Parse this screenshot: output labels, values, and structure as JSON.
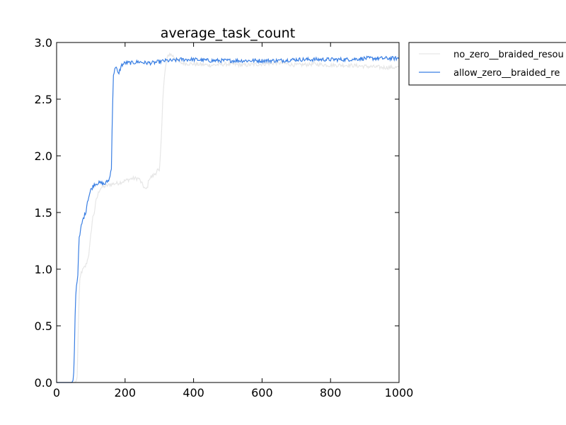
{
  "chart_data": {
    "type": "line",
    "title": "average_task_count",
    "xlabel": "",
    "ylabel": "",
    "xlim": [
      0,
      1000
    ],
    "ylim": [
      0.0,
      3.0
    ],
    "x_ticks": [
      0,
      200,
      400,
      600,
      800,
      1000
    ],
    "x_tick_labels": [
      "0",
      "200",
      "400",
      "600",
      "800",
      "1000"
    ],
    "y_ticks": [
      0.0,
      0.5,
      1.0,
      1.5,
      2.0,
      2.5,
      3.0
    ],
    "y_tick_labels": [
      "0.0",
      "0.5",
      "1.0",
      "1.5",
      "2.0",
      "2.5",
      "3.0"
    ],
    "grid": false,
    "legend_position": "outside-top-right",
    "series": [
      {
        "name": "no_zero__braided_resou",
        "color": "#e6e6e6",
        "points": [
          [
            0,
            0.0
          ],
          [
            40,
            0.0
          ],
          [
            55,
            0.0
          ],
          [
            58,
            0.02
          ],
          [
            60,
            0.05
          ],
          [
            62,
            0.3
          ],
          [
            65,
            0.7
          ],
          [
            68,
            0.9
          ],
          [
            72,
            0.97
          ],
          [
            78,
            1.0
          ],
          [
            85,
            1.03
          ],
          [
            90,
            1.08
          ],
          [
            95,
            1.15
          ],
          [
            100,
            1.3
          ],
          [
            105,
            1.45
          ],
          [
            110,
            1.5
          ],
          [
            115,
            1.6
          ],
          [
            120,
            1.65
          ],
          [
            125,
            1.7
          ],
          [
            130,
            1.72
          ],
          [
            140,
            1.73
          ],
          [
            150,
            1.74
          ],
          [
            160,
            1.75
          ],
          [
            180,
            1.76
          ],
          [
            200,
            1.78
          ],
          [
            220,
            1.8
          ],
          [
            240,
            1.8
          ],
          [
            250,
            1.75
          ],
          [
            260,
            1.7
          ],
          [
            265,
            1.72
          ],
          [
            270,
            1.8
          ],
          [
            280,
            1.82
          ],
          [
            290,
            1.85
          ],
          [
            295,
            1.88
          ],
          [
            300,
            1.85
          ],
          [
            305,
            2.1
          ],
          [
            310,
            2.5
          ],
          [
            315,
            2.7
          ],
          [
            320,
            2.82
          ],
          [
            325,
            2.88
          ],
          [
            330,
            2.9
          ],
          [
            340,
            2.88
          ],
          [
            360,
            2.82
          ],
          [
            400,
            2.81
          ],
          [
            450,
            2.8
          ],
          [
            500,
            2.81
          ],
          [
            550,
            2.8
          ],
          [
            600,
            2.81
          ],
          [
            650,
            2.82
          ],
          [
            700,
            2.8
          ],
          [
            750,
            2.81
          ],
          [
            800,
            2.8
          ],
          [
            850,
            2.8
          ],
          [
            900,
            2.79
          ],
          [
            950,
            2.78
          ],
          [
            1000,
            2.78
          ]
        ]
      },
      {
        "name": "allow_zero__braided_re",
        "color": "#3a7fe3",
        "points": [
          [
            0,
            0.0
          ],
          [
            40,
            0.0
          ],
          [
            45,
            0.0
          ],
          [
            48,
            0.02
          ],
          [
            50,
            0.08
          ],
          [
            53,
            0.4
          ],
          [
            55,
            0.75
          ],
          [
            58,
            0.85
          ],
          [
            62,
            0.95
          ],
          [
            65,
            1.25
          ],
          [
            68,
            1.3
          ],
          [
            72,
            1.38
          ],
          [
            78,
            1.45
          ],
          [
            85,
            1.5
          ],
          [
            90,
            1.6
          ],
          [
            95,
            1.65
          ],
          [
            100,
            1.7
          ],
          [
            110,
            1.75
          ],
          [
            120,
            1.76
          ],
          [
            130,
            1.76
          ],
          [
            140,
            1.75
          ],
          [
            150,
            1.78
          ],
          [
            155,
            1.8
          ],
          [
            160,
            1.9
          ],
          [
            163,
            2.4
          ],
          [
            166,
            2.7
          ],
          [
            170,
            2.78
          ],
          [
            175,
            2.77
          ],
          [
            180,
            2.72
          ],
          [
            185,
            2.76
          ],
          [
            190,
            2.8
          ],
          [
            200,
            2.82
          ],
          [
            220,
            2.82
          ],
          [
            240,
            2.83
          ],
          [
            260,
            2.82
          ],
          [
            280,
            2.82
          ],
          [
            300,
            2.83
          ],
          [
            320,
            2.84
          ],
          [
            340,
            2.84
          ],
          [
            360,
            2.85
          ],
          [
            400,
            2.85
          ],
          [
            450,
            2.84
          ],
          [
            500,
            2.84
          ],
          [
            550,
            2.84
          ],
          [
            600,
            2.84
          ],
          [
            650,
            2.84
          ],
          [
            700,
            2.85
          ],
          [
            750,
            2.85
          ],
          [
            800,
            2.85
          ],
          [
            850,
            2.85
          ],
          [
            900,
            2.86
          ],
          [
            950,
            2.86
          ],
          [
            1000,
            2.86
          ]
        ]
      }
    ]
  }
}
